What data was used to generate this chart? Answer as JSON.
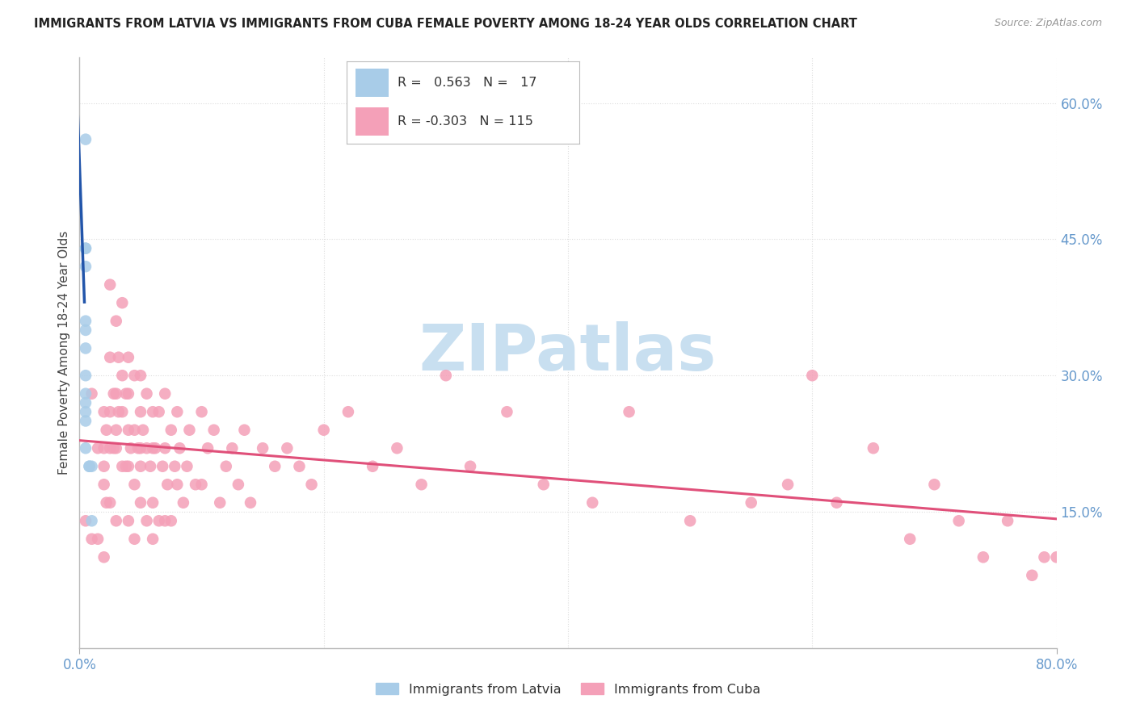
{
  "title": "IMMIGRANTS FROM LATVIA VS IMMIGRANTS FROM CUBA FEMALE POVERTY AMONG 18-24 YEAR OLDS CORRELATION CHART",
  "source": "Source: ZipAtlas.com",
  "ylabel": "Female Poverty Among 18-24 Year Olds",
  "xlim": [
    0.0,
    0.8
  ],
  "ylim": [
    0.0,
    0.65
  ],
  "latvia_color": "#a8cce8",
  "cuba_color": "#f4a0b8",
  "latvia_line_color": "#2255aa",
  "cuba_line_color": "#e0507a",
  "latvia_R": 0.563,
  "latvia_N": 17,
  "cuba_R": -0.303,
  "cuba_N": 115,
  "watermark": "ZIPatlas",
  "watermark_color": "#c8dff0",
  "grid_color": "#dddddd",
  "tick_label_color": "#6699cc",
  "title_color": "#222222",
  "source_color": "#999999",
  "latvia_x": [
    0.005,
    0.005,
    0.005,
    0.005,
    0.005,
    0.005,
    0.005,
    0.005,
    0.005,
    0.005,
    0.005,
    0.005,
    0.005,
    0.008,
    0.008,
    0.01,
    0.01
  ],
  "latvia_y": [
    0.56,
    0.44,
    0.44,
    0.42,
    0.36,
    0.35,
    0.33,
    0.3,
    0.28,
    0.27,
    0.26,
    0.25,
    0.22,
    0.2,
    0.2,
    0.14,
    0.2
  ],
  "cuba_x": [
    0.005,
    0.01,
    0.01,
    0.015,
    0.015,
    0.02,
    0.02,
    0.02,
    0.02,
    0.02,
    0.022,
    0.022,
    0.025,
    0.025,
    0.025,
    0.025,
    0.025,
    0.028,
    0.028,
    0.03,
    0.03,
    0.03,
    0.03,
    0.03,
    0.032,
    0.032,
    0.035,
    0.035,
    0.035,
    0.035,
    0.038,
    0.038,
    0.04,
    0.04,
    0.04,
    0.04,
    0.04,
    0.042,
    0.045,
    0.045,
    0.045,
    0.045,
    0.048,
    0.05,
    0.05,
    0.05,
    0.05,
    0.05,
    0.052,
    0.055,
    0.055,
    0.055,
    0.058,
    0.06,
    0.06,
    0.06,
    0.06,
    0.062,
    0.065,
    0.065,
    0.068,
    0.07,
    0.07,
    0.07,
    0.072,
    0.075,
    0.075,
    0.078,
    0.08,
    0.08,
    0.082,
    0.085,
    0.088,
    0.09,
    0.095,
    0.1,
    0.1,
    0.105,
    0.11,
    0.115,
    0.12,
    0.125,
    0.13,
    0.135,
    0.14,
    0.15,
    0.16,
    0.17,
    0.18,
    0.19,
    0.2,
    0.22,
    0.24,
    0.26,
    0.28,
    0.3,
    0.32,
    0.35,
    0.38,
    0.42,
    0.45,
    0.5,
    0.55,
    0.58,
    0.6,
    0.62,
    0.65,
    0.68,
    0.7,
    0.72,
    0.74,
    0.76,
    0.78,
    0.79,
    0.8
  ],
  "cuba_y": [
    0.14,
    0.28,
    0.12,
    0.22,
    0.12,
    0.26,
    0.22,
    0.2,
    0.18,
    0.1,
    0.24,
    0.16,
    0.4,
    0.32,
    0.26,
    0.22,
    0.16,
    0.28,
    0.22,
    0.36,
    0.28,
    0.24,
    0.22,
    0.14,
    0.32,
    0.26,
    0.38,
    0.3,
    0.26,
    0.2,
    0.28,
    0.2,
    0.32,
    0.28,
    0.24,
    0.2,
    0.14,
    0.22,
    0.3,
    0.24,
    0.18,
    0.12,
    0.22,
    0.3,
    0.26,
    0.22,
    0.2,
    0.16,
    0.24,
    0.28,
    0.22,
    0.14,
    0.2,
    0.26,
    0.22,
    0.16,
    0.12,
    0.22,
    0.26,
    0.14,
    0.2,
    0.28,
    0.22,
    0.14,
    0.18,
    0.24,
    0.14,
    0.2,
    0.26,
    0.18,
    0.22,
    0.16,
    0.2,
    0.24,
    0.18,
    0.26,
    0.18,
    0.22,
    0.24,
    0.16,
    0.2,
    0.22,
    0.18,
    0.24,
    0.16,
    0.22,
    0.2,
    0.22,
    0.2,
    0.18,
    0.24,
    0.26,
    0.2,
    0.22,
    0.18,
    0.3,
    0.2,
    0.26,
    0.18,
    0.16,
    0.26,
    0.14,
    0.16,
    0.18,
    0.3,
    0.16,
    0.22,
    0.12,
    0.18,
    0.14,
    0.1,
    0.14,
    0.08,
    0.1,
    0.1
  ]
}
